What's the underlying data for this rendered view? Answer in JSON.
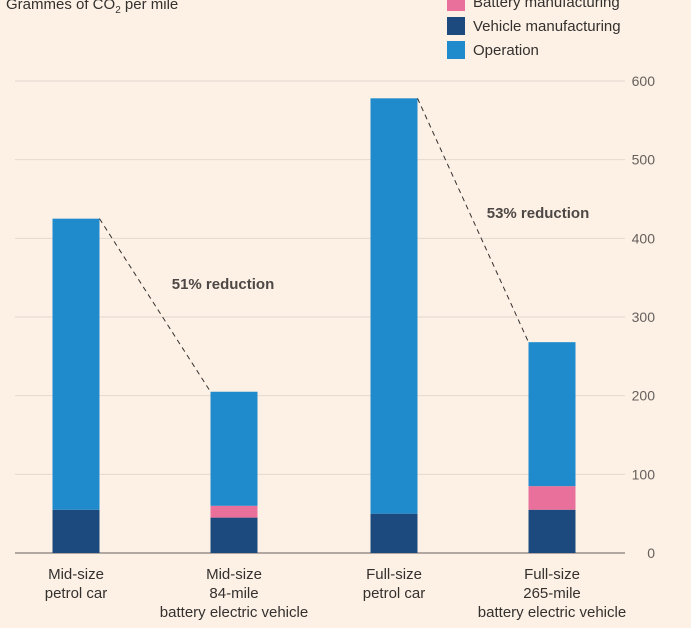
{
  "chart_data": {
    "type": "bar",
    "stacked": true,
    "title": "",
    "ylabel_prefix": "Grammes of CO",
    "ylabel_sub": "2",
    "ylabel_suffix": " per mile",
    "ylim": [
      0,
      600
    ],
    "yticks": [
      "0",
      "100",
      "200",
      "300",
      "400",
      "500",
      "600"
    ],
    "categories": [
      {
        "lines": [
          "Mid-size",
          "petrol car"
        ]
      },
      {
        "lines": [
          "Mid-size",
          "84-mile",
          "battery electric vehicle"
        ]
      },
      {
        "lines": [
          "Full-size",
          "petrol car"
        ]
      },
      {
        "lines": [
          "Full-size",
          "265-mile",
          "battery electric vehicle"
        ]
      }
    ],
    "series": [
      {
        "name": "Vehicle manufacturing",
        "color": "#1c4a7e",
        "values": [
          55,
          45,
          50,
          55
        ]
      },
      {
        "name": "Battery manufacturing",
        "color": "#e8709b",
        "values": [
          0,
          15,
          0,
          30
        ]
      },
      {
        "name": "Operation",
        "color": "#1f8bcc",
        "values": [
          370,
          145,
          528,
          183
        ]
      }
    ],
    "legend": [
      {
        "name": "Battery manufacturing",
        "color": "#e8709b"
      },
      {
        "name": "Vehicle manufacturing",
        "color": "#1c4a7e"
      },
      {
        "name": "Operation",
        "color": "#1f8bcc"
      }
    ],
    "annotations": [
      {
        "text": "51% reduction",
        "from": 0,
        "to": 1
      },
      {
        "text": "53% reduction",
        "from": 2,
        "to": 3
      }
    ]
  }
}
